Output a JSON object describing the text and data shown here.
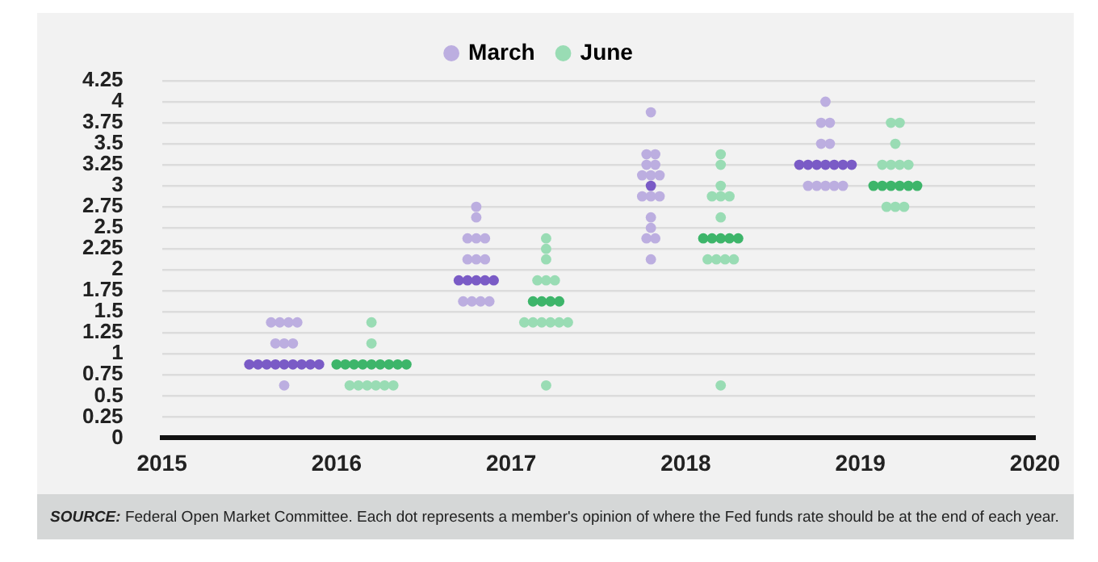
{
  "chart_data": {
    "type": "scatter",
    "marker": "circle",
    "grid": "y",
    "legend": "top",
    "xlim": [
      2015,
      2020
    ],
    "xticks": [
      2015,
      2016,
      2017,
      2018,
      2019,
      2020
    ],
    "ylim": [
      0,
      4.25
    ],
    "yticks": [
      0,
      0.25,
      0.5,
      0.75,
      1,
      1.25,
      1.5,
      1.75,
      2,
      2.25,
      2.5,
      2.75,
      3,
      3.25,
      3.5,
      3.75,
      4,
      4.25
    ],
    "series": [
      {
        "name": "March",
        "color": "#bcaee0",
        "x": [
          2015.625,
          2015.675,
          2015.725,
          2015.775,
          2015.65,
          2015.7,
          2015.75,
          2015.5,
          2015.55,
          2015.6,
          2015.65,
          2015.7,
          2015.75,
          2015.8,
          2015.85,
          2015.9,
          2015.7,
          2016.8,
          2016.8,
          2016.75,
          2016.8,
          2016.85,
          2016.75,
          2016.8,
          2016.85,
          2016.7,
          2016.75,
          2016.8,
          2016.85,
          2016.9,
          2016.725,
          2016.775,
          2016.825,
          2016.875,
          2017.8,
          2017.775,
          2017.825,
          2017.775,
          2017.825,
          2017.75,
          2017.8,
          2017.85,
          2017.8,
          2017.75,
          2017.8,
          2017.85,
          2017.8,
          2017.8,
          2017.775,
          2017.825,
          2017.8,
          2018.8,
          2018.775,
          2018.825,
          2018.775,
          2018.825,
          2018.65,
          2018.7,
          2018.75,
          2018.8,
          2018.85,
          2018.9,
          2018.95,
          2018.7,
          2018.75,
          2018.8,
          2018.85,
          2018.9
        ],
        "values": [
          1.375,
          1.375,
          1.375,
          1.375,
          1.125,
          1.125,
          1.125,
          0.875,
          0.875,
          0.875,
          0.875,
          0.875,
          0.875,
          0.875,
          0.875,
          0.875,
          0.625,
          2.75,
          2.625,
          2.375,
          2.375,
          2.375,
          2.125,
          2.125,
          2.125,
          1.875,
          1.875,
          1.875,
          1.875,
          1.875,
          1.625,
          1.625,
          1.625,
          1.625,
          3.875,
          3.375,
          3.375,
          3.25,
          3.25,
          3.125,
          3.125,
          3.125,
          3,
          2.875,
          2.875,
          2.875,
          2.625,
          2.5,
          2.375,
          2.375,
          2.125,
          4,
          3.75,
          3.75,
          3.5,
          3.5,
          3.25,
          3.25,
          3.25,
          3.25,
          3.25,
          3.25,
          3.25,
          3,
          3,
          3,
          3,
          3
        ],
        "colors": [
          "#bcaee0",
          "#bcaee0",
          "#bcaee0",
          "#bcaee0",
          "#bcaee0",
          "#bcaee0",
          "#bcaee0",
          "#7a5bc6",
          "#7a5bc6",
          "#7a5bc6",
          "#7a5bc6",
          "#7a5bc6",
          "#7a5bc6",
          "#7a5bc6",
          "#7a5bc6",
          "#7a5bc6",
          "#bcaee0",
          "#bcaee0",
          "#bcaee0",
          "#bcaee0",
          "#bcaee0",
          "#bcaee0",
          "#bcaee0",
          "#bcaee0",
          "#bcaee0",
          "#7a5bc6",
          "#7a5bc6",
          "#7a5bc6",
          "#7a5bc6",
          "#7a5bc6",
          "#bcaee0",
          "#bcaee0",
          "#bcaee0",
          "#bcaee0",
          "#bcaee0",
          "#bcaee0",
          "#bcaee0",
          "#bcaee0",
          "#bcaee0",
          "#bcaee0",
          "#bcaee0",
          "#bcaee0",
          "#7a5bc6",
          "#bcaee0",
          "#bcaee0",
          "#bcaee0",
          "#bcaee0",
          "#bcaee0",
          "#bcaee0",
          "#bcaee0",
          "#bcaee0",
          "#bcaee0",
          "#bcaee0",
          "#bcaee0",
          "#bcaee0",
          "#bcaee0",
          "#7a5bc6",
          "#7a5bc6",
          "#7a5bc6",
          "#7a5bc6",
          "#7a5bc6",
          "#7a5bc6",
          "#7a5bc6",
          "#bcaee0",
          "#bcaee0",
          "#bcaee0",
          "#bcaee0",
          "#bcaee0"
        ]
      },
      {
        "name": "June",
        "color": "#99dcb4",
        "x": [
          2016.2,
          2016.2,
          2016.0,
          2016.05,
          2016.1,
          2016.15,
          2016.2,
          2016.25,
          2016.3,
          2016.35,
          2016.4,
          2016.075,
          2016.125,
          2016.175,
          2016.225,
          2016.275,
          2016.325,
          2017.2,
          2017.2,
          2017.2,
          2017.15,
          2017.2,
          2017.25,
          2017.125,
          2017.175,
          2017.225,
          2017.275,
          2017.075,
          2017.125,
          2017.175,
          2017.225,
          2017.275,
          2017.325,
          2017.2,
          2018.2,
          2018.2,
          2018.2,
          2018.15,
          2018.2,
          2018.25,
          2018.2,
          2018.1,
          2018.15,
          2018.2,
          2018.25,
          2018.3,
          2018.125,
          2018.175,
          2018.225,
          2018.275,
          2018.2,
          2019.175,
          2019.225,
          2019.2,
          2019.125,
          2019.175,
          2019.225,
          2019.275,
          2019.075,
          2019.125,
          2019.175,
          2019.225,
          2019.275,
          2019.325,
          2019.15,
          2019.2,
          2019.25
        ],
        "values": [
          1.375,
          1.125,
          0.875,
          0.875,
          0.875,
          0.875,
          0.875,
          0.875,
          0.875,
          0.875,
          0.875,
          0.625,
          0.625,
          0.625,
          0.625,
          0.625,
          0.625,
          2.375,
          2.25,
          2.125,
          1.875,
          1.875,
          1.875,
          1.625,
          1.625,
          1.625,
          1.625,
          1.375,
          1.375,
          1.375,
          1.375,
          1.375,
          1.375,
          0.625,
          3.375,
          3.25,
          3,
          2.875,
          2.875,
          2.875,
          2.625,
          2.375,
          2.375,
          2.375,
          2.375,
          2.375,
          2.125,
          2.125,
          2.125,
          2.125,
          0.625,
          3.75,
          3.75,
          3.5,
          3.25,
          3.25,
          3.25,
          3.25,
          3,
          3,
          3,
          3,
          3,
          3,
          2.75,
          2.75,
          2.75
        ],
        "colors": [
          "#99dcb4",
          "#99dcb4",
          "#3db56a",
          "#3db56a",
          "#3db56a",
          "#3db56a",
          "#3db56a",
          "#3db56a",
          "#3db56a",
          "#3db56a",
          "#3db56a",
          "#99dcb4",
          "#99dcb4",
          "#99dcb4",
          "#99dcb4",
          "#99dcb4",
          "#99dcb4",
          "#99dcb4",
          "#99dcb4",
          "#99dcb4",
          "#99dcb4",
          "#99dcb4",
          "#99dcb4",
          "#3db56a",
          "#3db56a",
          "#3db56a",
          "#3db56a",
          "#99dcb4",
          "#99dcb4",
          "#99dcb4",
          "#99dcb4",
          "#99dcb4",
          "#99dcb4",
          "#99dcb4",
          "#99dcb4",
          "#99dcb4",
          "#99dcb4",
          "#99dcb4",
          "#99dcb4",
          "#99dcb4",
          "#99dcb4",
          "#3db56a",
          "#3db56a",
          "#3db56a",
          "#3db56a",
          "#3db56a",
          "#99dcb4",
          "#99dcb4",
          "#99dcb4",
          "#99dcb4",
          "#99dcb4",
          "#99dcb4",
          "#99dcb4",
          "#99dcb4",
          "#99dcb4",
          "#99dcb4",
          "#99dcb4",
          "#99dcb4",
          "#3db56a",
          "#3db56a",
          "#3db56a",
          "#3db56a",
          "#3db56a",
          "#3db56a",
          "#99dcb4",
          "#99dcb4",
          "#99dcb4"
        ]
      }
    ],
    "annotations": [
      "SOURCE: Federal Open Market Committee. Each dot represents a member's opinion of where the Fed funds rate should be at the end of each year."
    ]
  }
}
